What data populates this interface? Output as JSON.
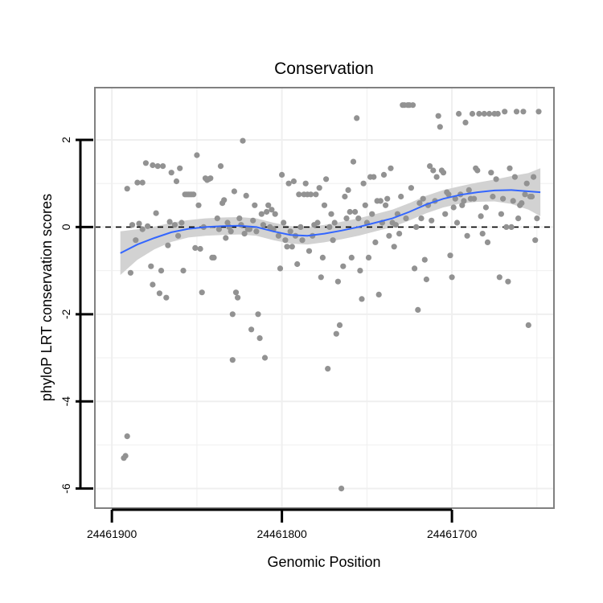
{
  "chart_data": {
    "type": "scatter",
    "title": "Conservation",
    "xlabel": "Genomic Position",
    "ylabel": "phyloP LRT conservation scores",
    "xlim": [
      24461910,
      24461640
    ],
    "ylim": [
      -6.45,
      3.2
    ],
    "x_reversed": true,
    "x_ticks": [
      24461900,
      24461800,
      24461700
    ],
    "x_tick_labels": [
      "24461900",
      "24461800",
      "24461700"
    ],
    "y_ticks": [
      -6,
      -4,
      -2,
      0,
      2
    ],
    "y_tick_labels": [
      "-6",
      "-4",
      "-2",
      "0",
      "2"
    ],
    "reference_line": {
      "y": 0,
      "style": "dashed"
    },
    "points_series": "phyloP scores",
    "points": [
      [
        24461893,
        -5.3
      ],
      [
        24461892,
        -5.25
      ],
      [
        24461891,
        -4.8
      ],
      [
        24461891,
        0.88
      ],
      [
        24461889,
        -1.05
      ],
      [
        24461888,
        0.05
      ],
      [
        24461886,
        -0.3
      ],
      [
        24461885,
        1.02
      ],
      [
        24461884,
        0.08
      ],
      [
        24461882,
        1.02
      ],
      [
        24461882,
        -0.05
      ],
      [
        24461880,
        1.47
      ],
      [
        24461879,
        0.02
      ],
      [
        24461877,
        -0.9
      ],
      [
        24461876,
        1.42
      ],
      [
        24461876,
        -1.32
      ],
      [
        24461874,
        0.32
      ],
      [
        24461873,
        1.4
      ],
      [
        24461872,
        -1.52
      ],
      [
        24461871,
        -1.0
      ],
      [
        24461870,
        1.4
      ],
      [
        24461868,
        -1.62
      ],
      [
        24461867,
        -0.42
      ],
      [
        24461866,
        0.12
      ],
      [
        24461865,
        1.25
      ],
      [
        24461863,
        0.05
      ],
      [
        24461862,
        1.05
      ],
      [
        24461861,
        -0.2
      ],
      [
        24461860,
        1.35
      ],
      [
        24461859,
        0.1
      ],
      [
        24461858,
        -1.0
      ],
      [
        24461857,
        0.75
      ],
      [
        24461856,
        0.75
      ],
      [
        24461855,
        0.75
      ],
      [
        24461854,
        0.75
      ],
      [
        24461853,
        0.75
      ],
      [
        24461852,
        0.75
      ],
      [
        24461851,
        -0.48
      ],
      [
        24461850,
        1.65
      ],
      [
        24461849,
        0.5
      ],
      [
        24461848,
        -0.5
      ],
      [
        24461847,
        -1.5
      ],
      [
        24461846,
        0.0
      ],
      [
        24461845,
        1.12
      ],
      [
        24461844,
        1.08
      ],
      [
        24461843,
        1.1
      ],
      [
        24461842,
        1.12
      ],
      [
        24461841,
        -0.7
      ],
      [
        24461840,
        -0.7
      ],
      [
        24461838,
        0.2
      ],
      [
        24461837,
        -0.05
      ],
      [
        24461836,
        1.4
      ],
      [
        24461835,
        0.55
      ],
      [
        24461834,
        0.62
      ],
      [
        24461833,
        -0.25
      ],
      [
        24461832,
        0.1
      ],
      [
        24461831,
        0.0
      ],
      [
        24461830,
        -0.1
      ],
      [
        24461829,
        -2.0
      ],
      [
        24461829,
        -3.05
      ],
      [
        24461828,
        0.82
      ],
      [
        24461827,
        -1.5
      ],
      [
        24461826,
        -1.62
      ],
      [
        24461825,
        0.2
      ],
      [
        24461824,
        0.05
      ],
      [
        24461823,
        1.98
      ],
      [
        24461822,
        -0.15
      ],
      [
        24461821,
        0.72
      ],
      [
        24461820,
        -0.05
      ],
      [
        24461819,
        -0.05
      ],
      [
        24461818,
        -2.35
      ],
      [
        24461817,
        0.15
      ],
      [
        24461816,
        0.5
      ],
      [
        24461815,
        -0.1
      ],
      [
        24461814,
        -2.0
      ],
      [
        24461813,
        -2.55
      ],
      [
        24461812,
        0.3
      ],
      [
        24461811,
        0.05
      ],
      [
        24461810,
        -3.0
      ],
      [
        24461809,
        0.35
      ],
      [
        24461808,
        0.5
      ],
      [
        24461807,
        0.0
      ],
      [
        24461806,
        0.4
      ],
      [
        24461805,
        -0.05
      ],
      [
        24461804,
        0.3
      ],
      [
        24461802,
        -0.2
      ],
      [
        24461801,
        -0.95
      ],
      [
        24461800,
        1.2
      ],
      [
        24461799,
        0.1
      ],
      [
        24461798,
        -0.3
      ],
      [
        24461797,
        -0.45
      ],
      [
        24461796,
        1.0
      ],
      [
        24461795,
        -0.1
      ],
      [
        24461794,
        -0.45
      ],
      [
        24461793,
        1.05
      ],
      [
        24461792,
        -0.2
      ],
      [
        24461791,
        -0.85
      ],
      [
        24461790,
        0.75
      ],
      [
        24461789,
        0.0
      ],
      [
        24461788,
        -0.3
      ],
      [
        24461787,
        0.75
      ],
      [
        24461786,
        1.0
      ],
      [
        24461785,
        0.75
      ],
      [
        24461784,
        -0.55
      ],
      [
        24461783,
        0.75
      ],
      [
        24461782,
        -0.2
      ],
      [
        24461781,
        0.05
      ],
      [
        24461780,
        0.75
      ],
      [
        24461779,
        0.1
      ],
      [
        24461778,
        0.9
      ],
      [
        24461777,
        -1.15
      ],
      [
        24461776,
        -0.7
      ],
      [
        24461775,
        0.5
      ],
      [
        24461774,
        1.1
      ],
      [
        24461773,
        -3.25
      ],
      [
        24461772,
        0.0
      ],
      [
        24461771,
        0.3
      ],
      [
        24461770,
        -0.3
      ],
      [
        24461769,
        0.1
      ],
      [
        24461768,
        -2.45
      ],
      [
        24461767,
        -1.25
      ],
      [
        24461766,
        -2.25
      ],
      [
        24461765,
        -6.0
      ],
      [
        24461764,
        -0.9
      ],
      [
        24461763,
        0.7
      ],
      [
        24461762,
        0.2
      ],
      [
        24461761,
        0.85
      ],
      [
        24461760,
        0.35
      ],
      [
        24461759,
        -0.7
      ],
      [
        24461758,
        1.5
      ],
      [
        24461757,
        0.35
      ],
      [
        24461756,
        2.5
      ],
      [
        24461755,
        0.2
      ],
      [
        24461754,
        -1.0
      ],
      [
        24461753,
        -1.65
      ],
      [
        24461752,
        1.0
      ],
      [
        24461751,
        0.5
      ],
      [
        24461750,
        0.1
      ],
      [
        24461749,
        -0.7
      ],
      [
        24461748,
        1.15
      ],
      [
        24461747,
        0.3
      ],
      [
        24461746,
        1.15
      ],
      [
        24461745,
        -0.35
      ],
      [
        24461744,
        0.6
      ],
      [
        24461743,
        -1.55
      ],
      [
        24461742,
        0.6
      ],
      [
        24461741,
        0.1
      ],
      [
        24461740,
        1.2
      ],
      [
        24461739,
        0.5
      ],
      [
        24461738,
        0.65
      ],
      [
        24461737,
        -0.2
      ],
      [
        24461736,
        1.35
      ],
      [
        24461735,
        0.1
      ],
      [
        24461734,
        -0.45
      ],
      [
        24461733,
        0.05
      ],
      [
        24461732,
        0.3
      ],
      [
        24461731,
        -0.15
      ],
      [
        24461730,
        0.7
      ],
      [
        24461729,
        2.8
      ],
      [
        24461728,
        2.8
      ],
      [
        24461727,
        0.2
      ],
      [
        24461726,
        2.8
      ],
      [
        24461725,
        2.8
      ],
      [
        24461724,
        0.9
      ],
      [
        24461723,
        2.8
      ],
      [
        24461722,
        -0.95
      ],
      [
        24461721,
        0.0
      ],
      [
        24461720,
        -1.9
      ],
      [
        24461719,
        0.55
      ],
      [
        24461718,
        0.2
      ],
      [
        24461717,
        0.65
      ],
      [
        24461716,
        -0.75
      ],
      [
        24461715,
        -1.2
      ],
      [
        24461714,
        0.5
      ],
      [
        24461713,
        1.4
      ],
      [
        24461712,
        0.15
      ],
      [
        24461711,
        1.3
      ],
      [
        24461710,
        0.6
      ],
      [
        24461709,
        1.15
      ],
      [
        24461708,
        2.55
      ],
      [
        24461707,
        2.3
      ],
      [
        24461706,
        1.3
      ],
      [
        24461705,
        1.25
      ],
      [
        24461704,
        0.3
      ],
      [
        24461703,
        0.8
      ],
      [
        24461702,
        0.75
      ],
      [
        24461701,
        -0.65
      ],
      [
        24461700,
        -1.15
      ],
      [
        24461699,
        0.45
      ],
      [
        24461698,
        0.65
      ],
      [
        24461697,
        0.1
      ],
      [
        24461696,
        2.6
      ],
      [
        24461695,
        0.75
      ],
      [
        24461694,
        0.5
      ],
      [
        24461693,
        0.6
      ],
      [
        24461692,
        2.4
      ],
      [
        24461691,
        -0.2
      ],
      [
        24461690,
        0.85
      ],
      [
        24461689,
        0.65
      ],
      [
        24461688,
        2.6
      ],
      [
        24461687,
        0.65
      ],
      [
        24461686,
        1.35
      ],
      [
        24461685,
        1.3
      ],
      [
        24461684,
        2.6
      ],
      [
        24461683,
        0.25
      ],
      [
        24461682,
        -0.15
      ],
      [
        24461681,
        2.6
      ],
      [
        24461680,
        0.45
      ],
      [
        24461679,
        -0.35
      ],
      [
        24461678,
        2.6
      ],
      [
        24461677,
        1.25
      ],
      [
        24461676,
        0.7
      ],
      [
        24461675,
        2.6
      ],
      [
        24461674,
        1.1
      ],
      [
        24461673,
        2.6
      ],
      [
        24461672,
        -1.15
      ],
      [
        24461671,
        0.3
      ],
      [
        24461670,
        0.65
      ],
      [
        24461669,
        2.65
      ],
      [
        24461668,
        0.0
      ],
      [
        24461667,
        -1.25
      ],
      [
        24461666,
        1.35
      ],
      [
        24461665,
        0.0
      ],
      [
        24461664,
        0.6
      ],
      [
        24461663,
        1.15
      ],
      [
        24461662,
        2.65
      ],
      [
        24461661,
        0.2
      ],
      [
        24461660,
        0.5
      ],
      [
        24461659,
        0.55
      ],
      [
        24461658,
        2.65
      ],
      [
        24461657,
        0.75
      ],
      [
        24461656,
        1.0
      ],
      [
        24461655,
        -2.25
      ],
      [
        24461654,
        0.7
      ],
      [
        24461653,
        0.7
      ],
      [
        24461652,
        1.15
      ],
      [
        24461651,
        -0.3
      ],
      [
        24461650,
        0.2
      ],
      [
        24461649,
        2.65
      ]
    ],
    "smooth_series": "loess fit",
    "smooth_line": [
      [
        24461895,
        -0.6
      ],
      [
        24461885,
        -0.4
      ],
      [
        24461875,
        -0.25
      ],
      [
        24461865,
        -0.12
      ],
      [
        24461855,
        -0.04
      ],
      [
        24461845,
        0.0
      ],
      [
        24461835,
        0.02
      ],
      [
        24461825,
        0.03
      ],
      [
        24461815,
        0.0
      ],
      [
        24461805,
        -0.1
      ],
      [
        24461795,
        -0.18
      ],
      [
        24461785,
        -0.2
      ],
      [
        24461775,
        -0.15
      ],
      [
        24461765,
        -0.08
      ],
      [
        24461755,
        0.0
      ],
      [
        24461745,
        0.1
      ],
      [
        24461735,
        0.2
      ],
      [
        24461725,
        0.35
      ],
      [
        24461715,
        0.52
      ],
      [
        24461705,
        0.65
      ],
      [
        24461695,
        0.74
      ],
      [
        24461685,
        0.8
      ],
      [
        24461675,
        0.84
      ],
      [
        24461665,
        0.85
      ],
      [
        24461655,
        0.82
      ],
      [
        24461648,
        0.8
      ]
    ],
    "confidence_band_halfwidth": [
      0.5,
      0.35,
      0.26,
      0.22,
      0.2,
      0.2,
      0.2,
      0.2,
      0.2,
      0.2,
      0.2,
      0.2,
      0.2,
      0.2,
      0.2,
      0.2,
      0.2,
      0.2,
      0.2,
      0.2,
      0.2,
      0.22,
      0.25,
      0.32,
      0.42,
      0.55
    ],
    "colors": {
      "points": "#929292",
      "smooth_line": "#3366FF",
      "band": "#d2d2d2",
      "grid": "#efefef",
      "frame": "#808080",
      "reference": "#000000"
    }
  }
}
